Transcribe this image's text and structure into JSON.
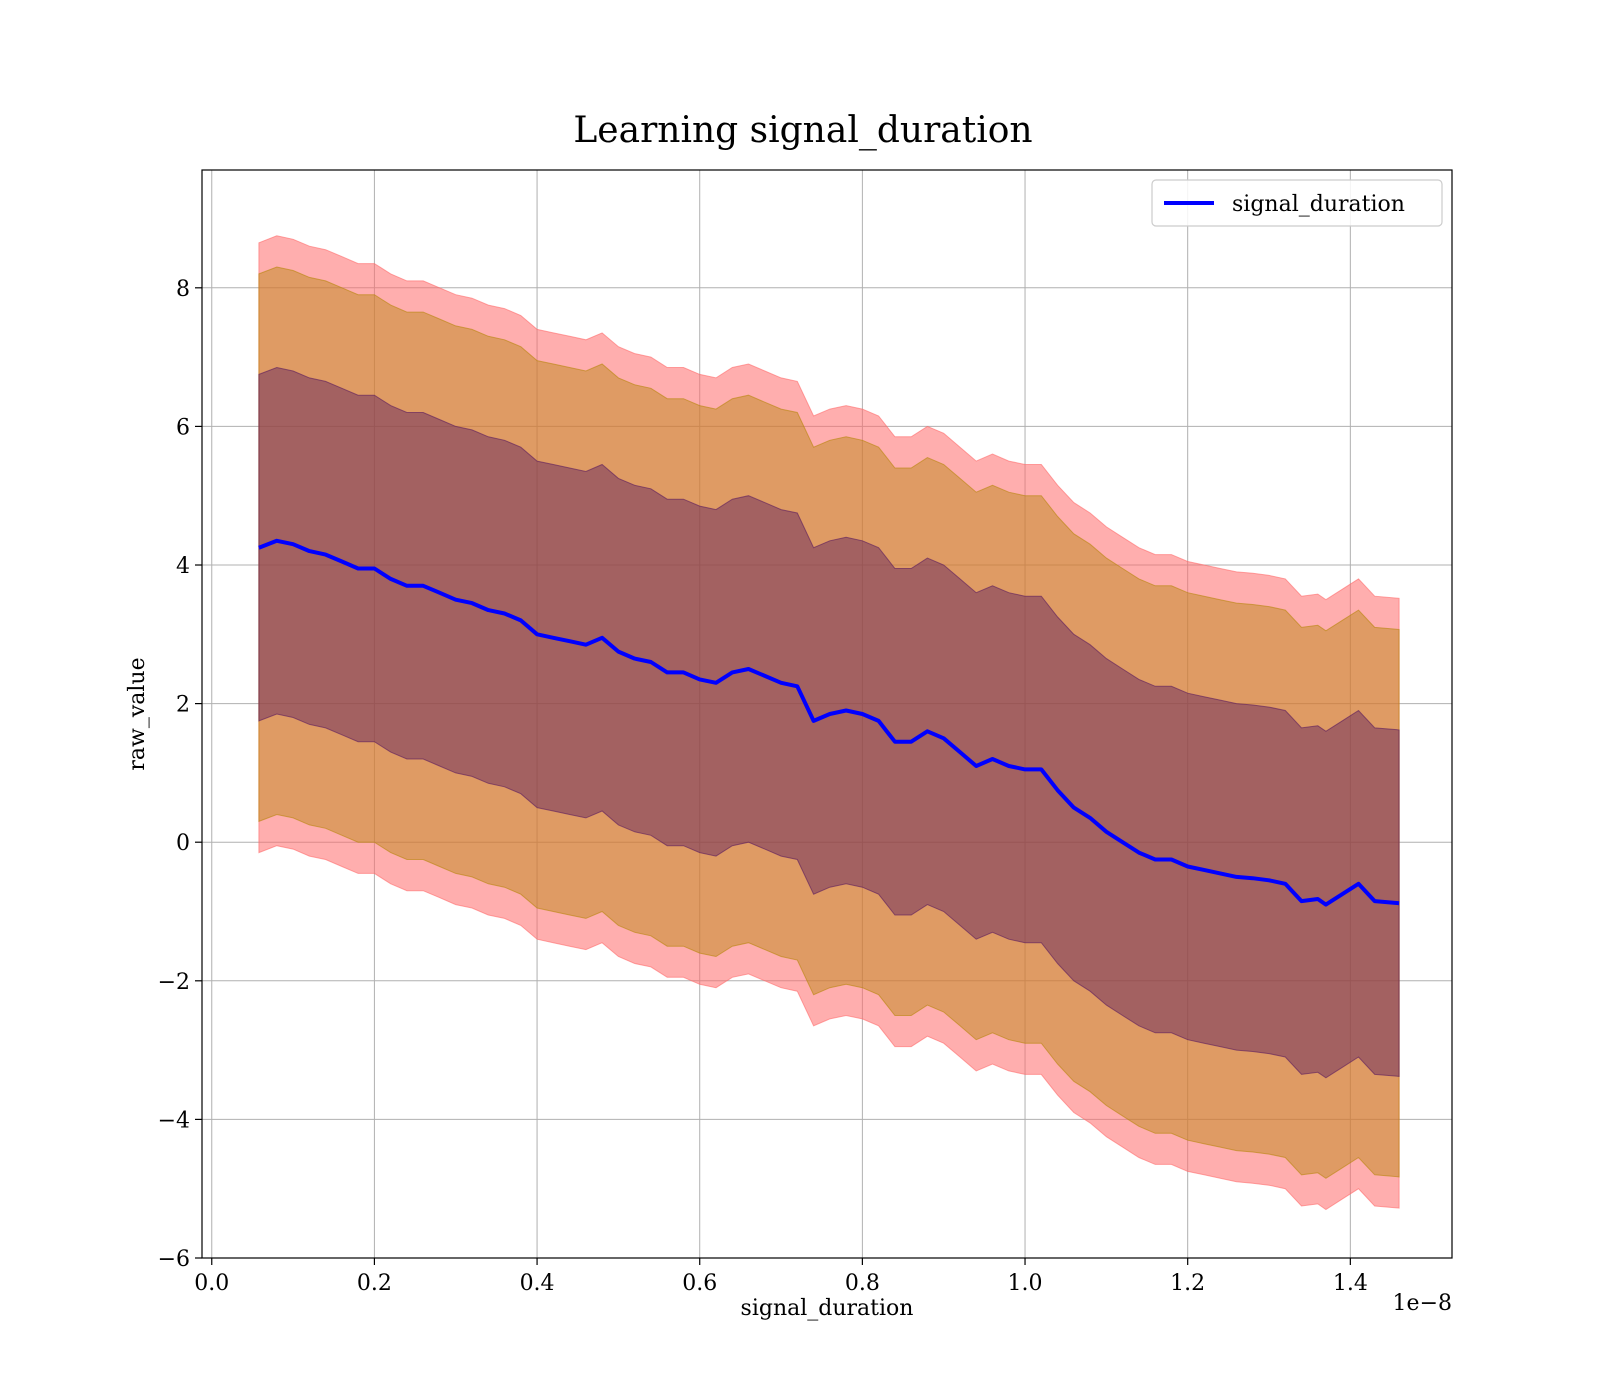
{
  "chart_data": {
    "type": "line",
    "title": "Learning signal_duration",
    "xlabel": "signal_duration",
    "ylabel": "raw_value",
    "x_offset_label": "1e−8",
    "xlim": [
      -0.012,
      1.525
    ],
    "ylim": [
      -6,
      9.7
    ],
    "x_ticks": [
      0.0,
      0.2,
      0.4,
      0.6,
      0.8,
      1.0,
      1.2,
      1.4
    ],
    "x_tick_labels": [
      "0.0",
      "0.2",
      "0.4",
      "0.6",
      "0.8",
      "1.0",
      "1.2",
      "1.4"
    ],
    "y_ticks": [
      -6,
      -4,
      -2,
      0,
      2,
      4,
      6,
      8
    ],
    "y_tick_labels": [
      "−6",
      "−4",
      "−2",
      "0",
      "2",
      "4",
      "6",
      "8"
    ],
    "grid": true,
    "legend": {
      "position": "top-right",
      "entries": [
        "signal_duration"
      ]
    },
    "x": [
      0.058,
      0.08,
      0.1,
      0.12,
      0.14,
      0.16,
      0.18,
      0.2,
      0.22,
      0.24,
      0.26,
      0.28,
      0.3,
      0.32,
      0.34,
      0.36,
      0.38,
      0.4,
      0.42,
      0.44,
      0.46,
      0.48,
      0.5,
      0.52,
      0.54,
      0.56,
      0.58,
      0.6,
      0.62,
      0.64,
      0.66,
      0.68,
      0.7,
      0.72,
      0.74,
      0.76,
      0.78,
      0.8,
      0.82,
      0.84,
      0.86,
      0.88,
      0.9,
      0.92,
      0.94,
      0.96,
      0.98,
      1.0,
      1.02,
      1.04,
      1.06,
      1.08,
      1.1,
      1.12,
      1.14,
      1.16,
      1.18,
      1.2,
      1.22,
      1.24,
      1.26,
      1.28,
      1.3,
      1.32,
      1.34,
      1.36,
      1.37,
      1.39,
      1.41,
      1.43,
      1.46
    ],
    "series": [
      {
        "name": "signal_duration",
        "color": "#0000ff",
        "values": [
          4.25,
          4.35,
          4.3,
          4.2,
          4.15,
          4.05,
          3.95,
          3.95,
          3.8,
          3.7,
          3.7,
          3.6,
          3.5,
          3.45,
          3.35,
          3.3,
          3.2,
          3.0,
          2.95,
          2.9,
          2.85,
          2.95,
          2.75,
          2.65,
          2.6,
          2.45,
          2.45,
          2.35,
          2.3,
          2.45,
          2.5,
          2.4,
          2.3,
          2.25,
          1.75,
          1.85,
          1.9,
          1.85,
          1.75,
          1.45,
          1.45,
          1.6,
          1.5,
          1.3,
          1.1,
          1.2,
          1.1,
          1.05,
          1.05,
          0.75,
          0.5,
          0.35,
          0.15,
          0.0,
          -0.15,
          -0.25,
          -0.25,
          -0.35,
          -0.4,
          -0.45,
          -0.5,
          -0.52,
          -0.55,
          -0.6,
          -0.85,
          -0.82,
          -0.9,
          -0.75,
          -0.6,
          -0.85,
          -0.88
        ]
      }
    ],
    "bands": [
      {
        "name": "outer",
        "color": "#ff6b6b",
        "opacity": 0.55,
        "offset": 4.4
      },
      {
        "name": "middle",
        "color": "#b8860b",
        "opacity": 0.45,
        "offset": 3.95
      },
      {
        "name": "inner",
        "color": "#5a1a5e",
        "opacity": 0.45,
        "offset": 2.5
      }
    ]
  }
}
